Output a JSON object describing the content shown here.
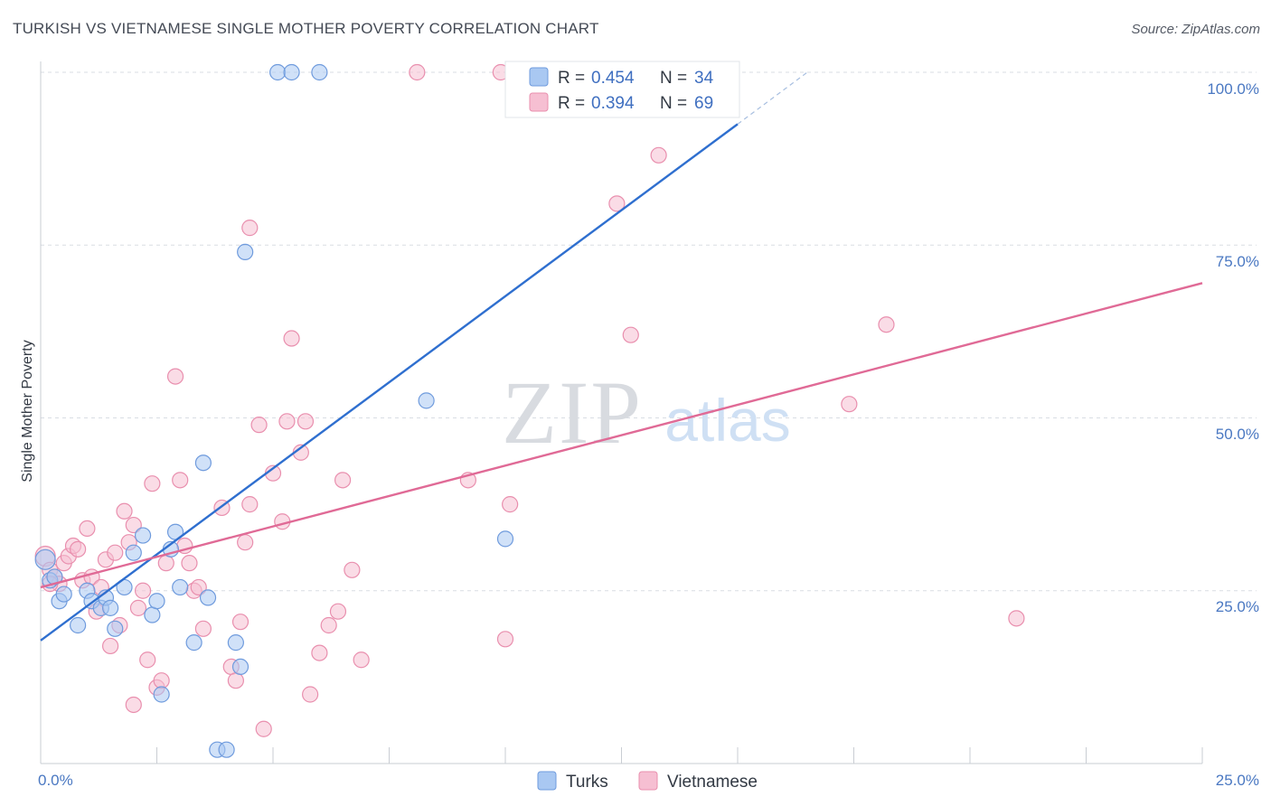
{
  "title": "TURKISH VS VIETNAMESE SINGLE MOTHER POVERTY CORRELATION CHART",
  "source": "Source: ZipAtlas.com",
  "watermark": {
    "zip": "ZIP",
    "atlas": "atlas"
  },
  "colors": {
    "turks_fill": "#a9c8f2",
    "turks_stroke": "#6f9bdd",
    "turks_line": "#2f6fcf",
    "viet_fill": "#f6bfd2",
    "viet_stroke": "#e98fae",
    "viet_line": "#e06a96",
    "grid": "#d9dde3",
    "axis_label": "#4a78c2"
  },
  "legend": {
    "turks": {
      "r_label": "R = ",
      "r_value": "0.454",
      "n_label": "N = ",
      "n_value": "34"
    },
    "viet": {
      "r_label": "R = ",
      "r_value": "0.394",
      "n_label": "N = ",
      "n_value": "69"
    }
  },
  "chart_data": {
    "type": "scatter",
    "title": "TURKISH VS VIETNAMESE SINGLE MOTHER POVERTY CORRELATION CHART",
    "xlabel": "",
    "ylabel": "Single Mother Poverty",
    "xlim": [
      0,
      25
    ],
    "ylim": [
      0,
      100
    ],
    "x_tick_labels": [
      "0.0%",
      "25.0%"
    ],
    "y_ticks": [
      25,
      50,
      75,
      100
    ],
    "y_tick_labels": [
      "25.0%",
      "50.0%",
      "75.0%",
      "100.0%"
    ],
    "grid": true,
    "legend_placement": "top-center",
    "series": [
      {
        "name": "Turks",
        "points": [
          [
            0.1,
            29.5
          ],
          [
            0.2,
            26.5
          ],
          [
            0.4,
            23.5
          ],
          [
            0.5,
            24.5
          ],
          [
            0.8,
            20.0
          ],
          [
            1.0,
            25.0
          ],
          [
            1.1,
            23.5
          ],
          [
            1.3,
            22.5
          ],
          [
            1.4,
            24.0
          ],
          [
            1.5,
            22.5
          ],
          [
            1.6,
            19.5
          ],
          [
            1.8,
            25.5
          ],
          [
            2.0,
            30.5
          ],
          [
            2.2,
            33.0
          ],
          [
            2.4,
            21.5
          ],
          [
            2.5,
            23.5
          ],
          [
            2.6,
            10.0
          ],
          [
            2.8,
            31.0
          ],
          [
            2.9,
            33.5
          ],
          [
            3.0,
            25.5
          ],
          [
            3.3,
            17.5
          ],
          [
            3.5,
            43.5
          ],
          [
            3.6,
            24.0
          ],
          [
            3.8,
            2.0
          ],
          [
            4.0,
            2.0
          ],
          [
            4.2,
            17.5
          ],
          [
            4.3,
            14.0
          ],
          [
            4.4,
            74.0
          ],
          [
            5.1,
            100.0
          ],
          [
            5.4,
            100.0
          ],
          [
            6.0,
            100.0
          ],
          [
            8.3,
            52.5
          ],
          [
            10.0,
            32.5
          ],
          [
            0.3,
            27.0
          ]
        ],
        "trend": {
          "x": [
            0,
            15
          ],
          "y": [
            17.8,
            92.5
          ],
          "dash_x": [
            15,
            16.5
          ],
          "dash_y": [
            92.5,
            100
          ]
        }
      },
      {
        "name": "Vietnamese",
        "points": [
          [
            0.1,
            30.0
          ],
          [
            0.2,
            28.0
          ],
          [
            0.3,
            27.0
          ],
          [
            0.4,
            26.0
          ],
          [
            0.5,
            29.0
          ],
          [
            0.6,
            30.0
          ],
          [
            0.7,
            31.5
          ],
          [
            0.8,
            31.0
          ],
          [
            0.9,
            26.5
          ],
          [
            1.0,
            34.0
          ],
          [
            1.1,
            27.0
          ],
          [
            1.2,
            22.0
          ],
          [
            1.3,
            25.5
          ],
          [
            1.4,
            29.5
          ],
          [
            1.5,
            17.0
          ],
          [
            1.6,
            30.5
          ],
          [
            1.7,
            20.0
          ],
          [
            1.8,
            36.5
          ],
          [
            1.9,
            32.0
          ],
          [
            2.0,
            34.5
          ],
          [
            2.0,
            8.5
          ],
          [
            2.1,
            22.5
          ],
          [
            2.2,
            25.0
          ],
          [
            2.3,
            15.0
          ],
          [
            2.4,
            40.5
          ],
          [
            2.5,
            11.0
          ],
          [
            2.6,
            12.0
          ],
          [
            2.7,
            29.0
          ],
          [
            2.9,
            56.0
          ],
          [
            3.0,
            41.0
          ],
          [
            3.1,
            31.5
          ],
          [
            3.2,
            29.0
          ],
          [
            3.3,
            25.0
          ],
          [
            3.4,
            25.5
          ],
          [
            3.5,
            19.5
          ],
          [
            3.9,
            37.0
          ],
          [
            4.1,
            14.0
          ],
          [
            4.2,
            12.0
          ],
          [
            4.3,
            20.5
          ],
          [
            4.4,
            32.0
          ],
          [
            4.5,
            37.5
          ],
          [
            4.5,
            77.5
          ],
          [
            4.7,
            49.0
          ],
          [
            4.8,
            5.0
          ],
          [
            5.0,
            42.0
          ],
          [
            5.2,
            35.0
          ],
          [
            5.3,
            49.5
          ],
          [
            5.4,
            61.5
          ],
          [
            5.6,
            45.0
          ],
          [
            5.7,
            49.5
          ],
          [
            5.8,
            10.0
          ],
          [
            6.0,
            16.0
          ],
          [
            6.2,
            20.0
          ],
          [
            6.4,
            22.0
          ],
          [
            6.5,
            41.0
          ],
          [
            6.7,
            28.0
          ],
          [
            6.9,
            15.0
          ],
          [
            8.1,
            100.0
          ],
          [
            9.2,
            41.0
          ],
          [
            9.9,
            100.0
          ],
          [
            10.0,
            18.0
          ],
          [
            10.1,
            37.5
          ],
          [
            12.4,
            81.0
          ],
          [
            12.7,
            62.0
          ],
          [
            13.3,
            88.0
          ],
          [
            17.4,
            52.0
          ],
          [
            18.2,
            63.5
          ],
          [
            21.0,
            21.0
          ],
          [
            0.2,
            26.0
          ]
        ],
        "trend": {
          "x": [
            0,
            25
          ],
          "y": [
            25.5,
            69.5
          ]
        }
      }
    ]
  }
}
